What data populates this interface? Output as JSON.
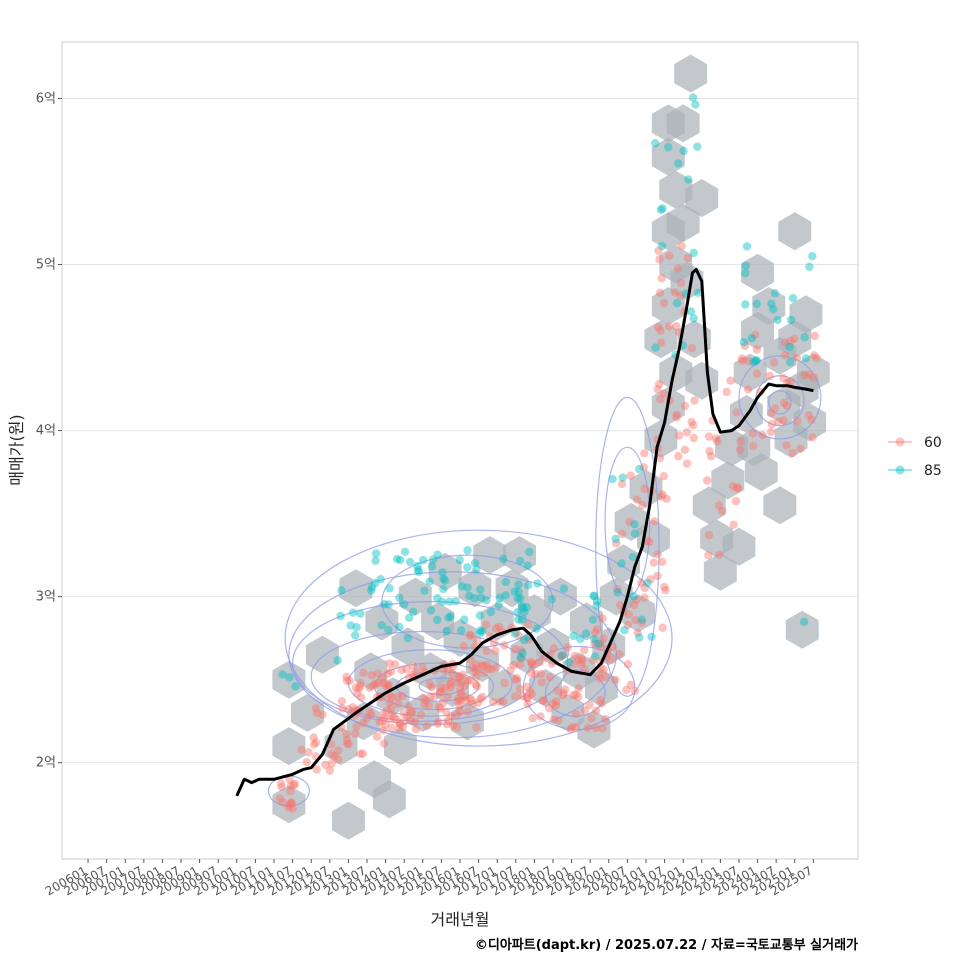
{
  "chart_data": {
    "type": "scatter",
    "title": "",
    "xlabel": "거래년월",
    "ylabel": "매매가(원)",
    "caption": "©디아파트(dapt.kr) / 2025.07.22 / 자료=국토교통부 실거래가",
    "ylim": [
      1.42,
      6.34
    ],
    "y_unit": "억",
    "y_ticks": [
      {
        "value": 2,
        "label": "2억"
      },
      {
        "value": 3,
        "label": "3억"
      },
      {
        "value": 4,
        "label": "4억"
      },
      {
        "value": 5,
        "label": "5억"
      },
      {
        "value": 6,
        "label": "6억"
      }
    ],
    "x_ticks": [
      "200601",
      "200607",
      "200701",
      "200707",
      "200801",
      "200807",
      "200901",
      "200907",
      "201001",
      "201007",
      "201101",
      "201107",
      "201201",
      "201207",
      "201301",
      "201307",
      "201401",
      "201407",
      "201501",
      "201507",
      "201601",
      "201607",
      "201701",
      "201707",
      "201801",
      "201807",
      "201901",
      "201907",
      "202001",
      "202007",
      "202101",
      "202107",
      "202201",
      "202207",
      "202301",
      "202307",
      "202401",
      "202407",
      "202501",
      "202507"
    ],
    "legend": {
      "position": "right",
      "items": [
        {
          "name": "60",
          "color": "#F8766D"
        },
        {
          "name": "85",
          "color": "#00BFC4"
        }
      ]
    },
    "grid": true,
    "colors": {
      "series60": "#F8766D",
      "series85": "#00BFC4",
      "hex": "#a9b0b8",
      "contour": "#8c9be8",
      "trend": "#000000",
      "panel_border": "#cccccc",
      "grid": "#e6e6e6"
    },
    "trend_line": {
      "name": "moving average",
      "points": [
        [
          2010.0,
          1.8
        ],
        [
          2010.2,
          1.9
        ],
        [
          2010.4,
          1.88
        ],
        [
          2010.6,
          1.9
        ],
        [
          2011.0,
          1.9
        ],
        [
          2011.5,
          1.93
        ],
        [
          2011.8,
          1.96
        ],
        [
          2012.0,
          1.97
        ],
        [
          2012.3,
          2.05
        ],
        [
          2012.6,
          2.2
        ],
        [
          2012.9,
          2.25
        ],
        [
          2013.2,
          2.3
        ],
        [
          2013.6,
          2.36
        ],
        [
          2014.0,
          2.42
        ],
        [
          2014.5,
          2.48
        ],
        [
          2015.0,
          2.53
        ],
        [
          2015.5,
          2.58
        ],
        [
          2016.0,
          2.6
        ],
        [
          2016.3,
          2.65
        ],
        [
          2016.6,
          2.72
        ],
        [
          2017.0,
          2.77
        ],
        [
          2017.4,
          2.8
        ],
        [
          2017.7,
          2.81
        ],
        [
          2017.9,
          2.77
        ],
        [
          2018.2,
          2.67
        ],
        [
          2018.6,
          2.6
        ],
        [
          2019.0,
          2.55
        ],
        [
          2019.5,
          2.53
        ],
        [
          2019.8,
          2.6
        ],
        [
          2020.0,
          2.7
        ],
        [
          2020.3,
          2.85
        ],
        [
          2020.5,
          3.0
        ],
        [
          2020.7,
          3.18
        ],
        [
          2020.9,
          3.3
        ],
        [
          2021.1,
          3.55
        ],
        [
          2021.3,
          3.9
        ],
        [
          2021.5,
          4.05
        ],
        [
          2021.7,
          4.3
        ],
        [
          2021.9,
          4.5
        ],
        [
          2022.1,
          4.75
        ],
        [
          2022.25,
          4.95
        ],
        [
          2022.35,
          4.97
        ],
        [
          2022.5,
          4.9
        ],
        [
          2022.65,
          4.35
        ],
        [
          2022.8,
          4.1
        ],
        [
          2023.0,
          3.99
        ],
        [
          2023.3,
          4.0
        ],
        [
          2023.5,
          4.03
        ],
        [
          2023.8,
          4.12
        ],
        [
          2024.0,
          4.2
        ],
        [
          2024.3,
          4.28
        ],
        [
          2024.5,
          4.27
        ],
        [
          2024.8,
          4.27
        ],
        [
          2025.0,
          4.26
        ],
        [
          2025.3,
          4.25
        ],
        [
          2025.5,
          4.24
        ]
      ]
    },
    "hex_bins": [
      [
        2011.4,
        2.5
      ],
      [
        2011.4,
        2.1
      ],
      [
        2011.4,
        1.75
      ],
      [
        2011.9,
        2.3
      ],
      [
        2012.3,
        2.65
      ],
      [
        2012.8,
        2.1
      ],
      [
        2013.0,
        1.65
      ],
      [
        2013.2,
        3.05
      ],
      [
        2013.4,
        2.25
      ],
      [
        2013.6,
        2.55
      ],
      [
        2013.7,
        1.9
      ],
      [
        2013.9,
        2.85
      ],
      [
        2014.1,
        1.78
      ],
      [
        2014.2,
        2.4
      ],
      [
        2014.4,
        2.1
      ],
      [
        2014.6,
        2.7
      ],
      [
        2014.8,
        3.0
      ],
      [
        2015.0,
        2.3
      ],
      [
        2015.2,
        2.55
      ],
      [
        2015.4,
        2.85
      ],
      [
        2015.6,
        3.15
      ],
      [
        2015.8,
        2.45
      ],
      [
        2016.0,
        2.75
      ],
      [
        2016.2,
        2.25
      ],
      [
        2016.4,
        3.05
      ],
      [
        2016.6,
        2.6
      ],
      [
        2016.8,
        3.25
      ],
      [
        2017.0,
        2.85
      ],
      [
        2017.2,
        2.45
      ],
      [
        2017.4,
        3.05
      ],
      [
        2017.6,
        3.25
      ],
      [
        2017.8,
        2.65
      ],
      [
        2018.0,
        2.9
      ],
      [
        2018.3,
        2.45
      ],
      [
        2018.5,
        2.7
      ],
      [
        2018.7,
        3.0
      ],
      [
        2018.9,
        2.3
      ],
      [
        2019.2,
        2.55
      ],
      [
        2019.4,
        2.85
      ],
      [
        2019.6,
        2.2
      ],
      [
        2019.8,
        2.45
      ],
      [
        2020.0,
        2.7
      ],
      [
        2020.2,
        3.0
      ],
      [
        2020.4,
        3.2
      ],
      [
        2020.6,
        3.45
      ],
      [
        2020.8,
        2.9
      ],
      [
        2021.0,
        3.65
      ],
      [
        2021.2,
        3.35
      ],
      [
        2021.4,
        3.95
      ],
      [
        2021.6,
        4.15
      ],
      [
        2021.8,
        4.35
      ],
      [
        2021.4,
        4.55
      ],
      [
        2021.6,
        4.75
      ],
      [
        2021.8,
        5.0
      ],
      [
        2021.6,
        5.2
      ],
      [
        2021.8,
        5.45
      ],
      [
        2021.6,
        5.65
      ],
      [
        2022.0,
        5.25
      ],
      [
        2021.6,
        5.85
      ],
      [
        2022.0,
        5.85
      ],
      [
        2022.2,
        6.15
      ],
      [
        2022.1,
        4.9
      ],
      [
        2022.3,
        4.55
      ],
      [
        2022.5,
        4.3
      ],
      [
        2022.5,
        5.4
      ],
      [
        2022.7,
        3.55
      ],
      [
        2022.9,
        3.35
      ],
      [
        2023.0,
        3.15
      ],
      [
        2023.2,
        3.7
      ],
      [
        2023.3,
        3.9
      ],
      [
        2023.5,
        3.3
      ],
      [
        2023.7,
        4.1
      ],
      [
        2023.9,
        3.9
      ],
      [
        2023.8,
        4.35
      ],
      [
        2024.0,
        4.6
      ],
      [
        2024.0,
        4.95
      ],
      [
        2024.3,
        4.75
      ],
      [
        2024.6,
        4.45
      ],
      [
        2024.7,
        4.15
      ],
      [
        2024.9,
        3.95
      ],
      [
        2025.0,
        4.55
      ],
      [
        2025.2,
        4.25
      ],
      [
        2025.0,
        5.2
      ],
      [
        2025.3,
        4.7
      ],
      [
        2025.5,
        4.35
      ],
      [
        2024.6,
        3.55
      ],
      [
        2025.2,
        2.8
      ],
      [
        2024.1,
        3.75
      ],
      [
        2025.4,
        4.05
      ]
    ],
    "contours": [
      {
        "cx": 2015.5,
        "cy": 2.46,
        "rx": 0.6,
        "ry": 0.05
      },
      {
        "cx": 2015.4,
        "cy": 2.46,
        "rx": 1.1,
        "ry": 0.09
      },
      {
        "cx": 2015.3,
        "cy": 2.46,
        "rx": 1.6,
        "ry": 0.14
      },
      {
        "cx": 2015.2,
        "cy": 2.48,
        "rx": 2.2,
        "ry": 0.2
      },
      {
        "cx": 2015.0,
        "cy": 2.52,
        "rx": 3.0,
        "ry": 0.27
      },
      {
        "cx": 2015.2,
        "cy": 2.6,
        "rx": 3.7,
        "ry": 0.37
      },
      {
        "cx": 2015.8,
        "cy": 2.65,
        "rx": 4.4,
        "ry": 0.5
      },
      {
        "cx": 2016.5,
        "cy": 2.75,
        "rx": 5.2,
        "ry": 0.65
      },
      {
        "cx": 2019.1,
        "cy": 2.42,
        "rx": 0.8,
        "ry": 0.14
      },
      {
        "cx": 2019.2,
        "cy": 2.45,
        "rx": 1.5,
        "ry": 0.25
      },
      {
        "cx": 2016.2,
        "cy": 2.97,
        "rx": 2.3,
        "ry": 0.28
      },
      {
        "cx": 2020.5,
        "cy": 3.45,
        "rx": 0.6,
        "ry": 0.45
      },
      {
        "cx": 2020.5,
        "cy": 3.3,
        "rx": 0.85,
        "ry": 0.9
      },
      {
        "cx": 2024.6,
        "cy": 4.17,
        "rx": 0.3,
        "ry": 0.07
      },
      {
        "cx": 2024.6,
        "cy": 4.18,
        "rx": 0.65,
        "ry": 0.15
      },
      {
        "cx": 2024.6,
        "cy": 4.2,
        "rx": 1.1,
        "ry": 0.25
      },
      {
        "cx": 2011.4,
        "cy": 1.83,
        "rx": 0.55,
        "ry": 0.09
      }
    ],
    "series": [
      {
        "name": "60",
        "color": "#F8766D",
        "clusters": [
          {
            "x": [
              2011.1,
              2011.6
            ],
            "y": [
              1.68,
              1.9
            ],
            "n": 14
          },
          {
            "x": [
              2011.5,
              2013.0
            ],
            "y": [
              1.95,
              2.35
            ],
            "n": 20
          },
          {
            "x": [
              2012.8,
              2014.5
            ],
            "y": [
              2.05,
              2.55
            ],
            "n": 60
          },
          {
            "x": [
              2014.0,
              2016.5
            ],
            "y": [
              2.2,
              2.6
            ],
            "n": 90
          },
          {
            "x": [
              2016.0,
              2018.0
            ],
            "y": [
              2.35,
              2.85
            ],
            "n": 60
          },
          {
            "x": [
              2017.8,
              2020.0
            ],
            "y": [
              2.2,
              2.7
            ],
            "n": 65
          },
          {
            "x": [
              2019.5,
              2020.8
            ],
            "y": [
              2.4,
              3.0
            ],
            "n": 20
          },
          {
            "x": [
              2020.2,
              2021.6
            ],
            "y": [
              2.8,
              3.9
            ],
            "n": 35
          },
          {
            "x": [
              2021.3,
              2022.4
            ],
            "y": [
              3.8,
              5.2
            ],
            "n": 40
          },
          {
            "x": [
              2022.5,
              2023.5
            ],
            "y": [
              3.2,
              4.35
            ],
            "n": 20
          },
          {
            "x": [
              2023.5,
              2025.6
            ],
            "y": [
              3.85,
              4.6
            ],
            "n": 45
          }
        ]
      },
      {
        "name": "85",
        "color": "#00BFC4",
        "clusters": [
          {
            "x": [
              2011.2,
              2011.6
            ],
            "y": [
              2.45,
              2.55
            ],
            "n": 3
          },
          {
            "x": [
              2012.6,
              2013.6
            ],
            "y": [
              2.6,
              3.05
            ],
            "n": 8
          },
          {
            "x": [
              2013.6,
              2018.0
            ],
            "y": [
              2.75,
              3.3
            ],
            "n": 80
          },
          {
            "x": [
              2017.5,
              2019.8
            ],
            "y": [
              2.6,
              3.1
            ],
            "n": 25
          },
          {
            "x": [
              2020.0,
              2021.3
            ],
            "y": [
              2.75,
              3.8
            ],
            "n": 15
          },
          {
            "x": [
              2021.2,
              2022.5
            ],
            "y": [
              4.4,
              6.1
            ],
            "n": 20
          },
          {
            "x": [
              2023.6,
              2025.6
            ],
            "y": [
              4.4,
              5.15
            ],
            "n": 22
          },
          {
            "x": [
              2025.0,
              2025.3
            ],
            "y": [
              2.75,
              2.85
            ],
            "n": 1
          }
        ]
      }
    ]
  }
}
